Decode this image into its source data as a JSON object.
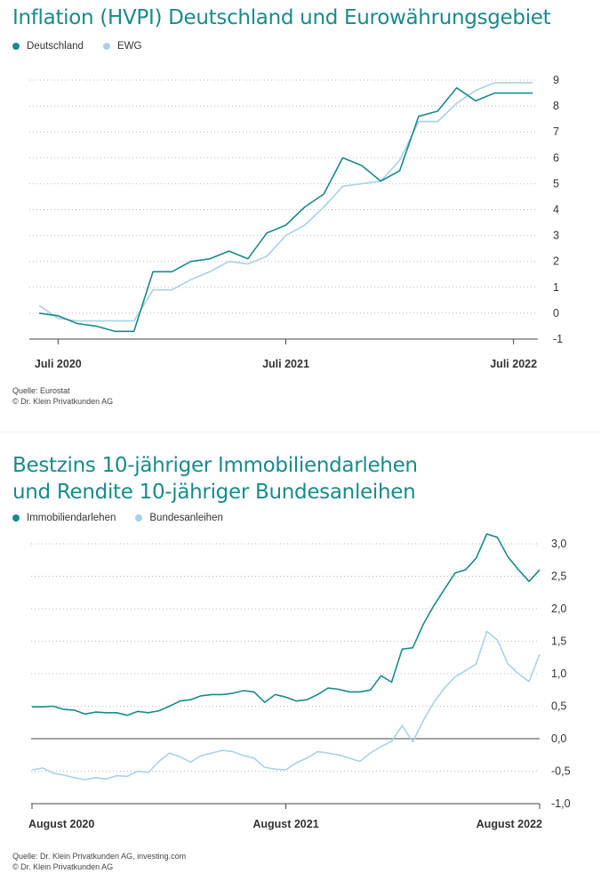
{
  "chart_data": [
    {
      "type": "line",
      "title": "Inflation (HVPI) Deutschland und Eurowährungsgebiet",
      "x_tick_labels": [
        "Juli 2020",
        "Juli 2021",
        "Juli 2022"
      ],
      "y_tick_labels": [
        "9",
        "8",
        "7",
        "6",
        "5",
        "4",
        "3",
        "2",
        "1",
        "0",
        "-1"
      ],
      "ylim": [
        -1,
        9
      ],
      "x": [
        "2020-06",
        "2020-07",
        "2020-08",
        "2020-09",
        "2020-10",
        "2020-11",
        "2020-12",
        "2021-01",
        "2021-02",
        "2021-03",
        "2021-04",
        "2021-05",
        "2021-06",
        "2021-07",
        "2021-08",
        "2021-09",
        "2021-10",
        "2021-11",
        "2021-12",
        "2022-01",
        "2022-02",
        "2022-03",
        "2022-04",
        "2022-05",
        "2022-06",
        "2022-07",
        "2022-08"
      ],
      "series": [
        {
          "name": "Deutschland",
          "color": "#1a8a8a",
          "values": [
            0.0,
            -0.1,
            -0.4,
            -0.5,
            -0.7,
            -0.7,
            1.6,
            1.6,
            2.0,
            2.1,
            2.4,
            2.1,
            3.1,
            3.4,
            4.1,
            4.6,
            6.0,
            5.7,
            5.1,
            5.5,
            7.6,
            7.8,
            8.7,
            8.2,
            8.5,
            8.5,
            8.5
          ]
        },
        {
          "name": "EWG",
          "color": "#a8d2e6",
          "values": [
            0.3,
            -0.2,
            -0.3,
            -0.3,
            -0.3,
            -0.3,
            0.9,
            0.9,
            1.3,
            1.6,
            2.0,
            1.9,
            2.2,
            3.0,
            3.4,
            4.1,
            4.9,
            5.0,
            5.1,
            5.9,
            7.4,
            7.4,
            8.1,
            8.6,
            8.9,
            8.9,
            8.9
          ]
        }
      ],
      "legend_position": "top-left",
      "grid": true,
      "source_lines": [
        "Quelle: Eurostat",
        "© Dr. Klein Privatkunden AG"
      ]
    },
    {
      "type": "line",
      "title_lines": [
        "Bestzins 10-jähriger Immobiliendarlehen",
        "und Rendite 10-jähriger Bundesanleihen"
      ],
      "x_tick_labels": [
        "August 2020",
        "August 2021",
        "August 2022"
      ],
      "y_tick_labels": [
        "3,0",
        "2,5",
        "2,0",
        "1,5",
        "1,0",
        "0,5",
        "0,0",
        "-0,5",
        "-1,0"
      ],
      "ylim": [
        -1.0,
        3.0
      ],
      "x_start": "2020-08",
      "x_end": "2022-08",
      "series": [
        {
          "name": "Immobiliendarlehen",
          "color": "#1a8a8a",
          "values": [
            0.49,
            0.49,
            0.5,
            0.45,
            0.44,
            0.38,
            0.41,
            0.4,
            0.4,
            0.36,
            0.42,
            0.4,
            0.43,
            0.5,
            0.58,
            0.6,
            0.66,
            0.68,
            0.68,
            0.7,
            0.74,
            0.72,
            0.56,
            0.68,
            0.64,
            0.58,
            0.6,
            0.68,
            0.78,
            0.76,
            0.72,
            0.72,
            0.75,
            0.97,
            0.87,
            1.38,
            1.4,
            1.76,
            2.05,
            2.3,
            2.55,
            2.6,
            2.78,
            3.15,
            3.1,
            2.8,
            2.6,
            2.42,
            2.6
          ]
        },
        {
          "name": "Bundesanleihen",
          "color": "#a8d2e6",
          "values": [
            -0.48,
            -0.45,
            -0.53,
            -0.56,
            -0.6,
            -0.63,
            -0.6,
            -0.62,
            -0.57,
            -0.58,
            -0.5,
            -0.52,
            -0.35,
            -0.22,
            -0.28,
            -0.36,
            -0.26,
            -0.22,
            -0.18,
            -0.2,
            -0.26,
            -0.3,
            -0.44,
            -0.47,
            -0.48,
            -0.37,
            -0.3,
            -0.2,
            -0.22,
            -0.25,
            -0.3,
            -0.35,
            -0.22,
            -0.12,
            -0.04,
            0.2,
            -0.05,
            0.28,
            0.56,
            0.78,
            0.95,
            1.05,
            1.15,
            1.65,
            1.52,
            1.15,
            1.0,
            0.88,
            1.3
          ]
        }
      ],
      "legend_position": "top-left",
      "grid": true,
      "source_lines": [
        "Quelle: Dr. Klein Privatkunden AG, investing.com",
        "© Dr. Klein Privatkunden AG"
      ]
    }
  ]
}
